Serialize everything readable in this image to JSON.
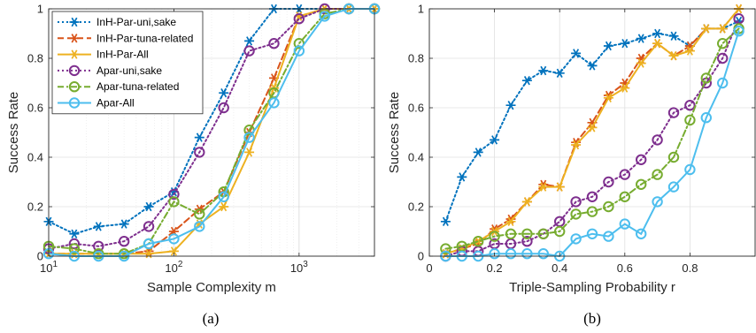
{
  "colors": {
    "blue": "#0072BD",
    "orange": "#D95319",
    "yellow": "#EDB120",
    "purple": "#7E2F8E",
    "green": "#77AC30",
    "cyan": "#4DBEEE"
  },
  "chart_data": [
    {
      "type": "line",
      "caption": "(a)",
      "xlabel": "Sample Complexity m",
      "ylabel": "Success Rate",
      "xscale": "log",
      "xlim": [
        10,
        4000
      ],
      "ylim": [
        0,
        1
      ],
      "xticks": [
        {
          "value": 10,
          "base": "10",
          "exp": "1"
        },
        {
          "value": 100,
          "base": "10",
          "exp": "2"
        },
        {
          "value": 1000,
          "base": "10",
          "exp": "3"
        }
      ],
      "yticks": [
        "0",
        "0.2",
        "0.4",
        "0.6",
        "0.8",
        "1"
      ],
      "grid": true,
      "legend_position": "top-left",
      "series": [
        {
          "name": "InH-Par-uni,sake",
          "color": "blue",
          "dash": "dotted",
          "marker": "asterisk",
          "x": [
            10,
            16,
            25,
            40,
            63,
            100,
            160,
            250,
            400,
            630,
            1000,
            1600,
            2500,
            4000
          ],
          "y": [
            0.14,
            0.09,
            0.12,
            0.13,
            0.2,
            0.26,
            0.48,
            0.66,
            0.87,
            1.0,
            1.0,
            1.0,
            1.0,
            1.0
          ]
        },
        {
          "name": "InH-Par-tuna-related",
          "color": "orange",
          "dash": "dashed",
          "marker": "asterisk",
          "x": [
            10,
            16,
            25,
            40,
            63,
            100,
            160,
            250,
            400,
            630,
            1000,
            1600,
            2500,
            4000
          ],
          "y": [
            0.01,
            0.01,
            0.01,
            0.01,
            0.02,
            0.1,
            0.19,
            0.26,
            0.5,
            0.72,
            0.97,
            1.0,
            1.0,
            1.0
          ]
        },
        {
          "name": "InH-Par-All",
          "color": "yellow",
          "dash": "solid",
          "marker": "asterisk",
          "x": [
            10,
            16,
            25,
            40,
            63,
            100,
            160,
            250,
            400,
            630,
            1000,
            1600,
            2500,
            4000
          ],
          "y": [
            0.01,
            0.01,
            0.01,
            0.01,
            0.01,
            0.02,
            0.13,
            0.2,
            0.42,
            0.68,
            0.97,
            1.0,
            1.0,
            1.0
          ]
        },
        {
          "name": "Apar-uni,sake",
          "color": "purple",
          "dash": "dotted",
          "marker": "circle",
          "x": [
            10,
            16,
            25,
            40,
            63,
            100,
            160,
            250,
            400,
            630,
            1000,
            1600,
            2500,
            4000
          ],
          "y": [
            0.03,
            0.05,
            0.04,
            0.06,
            0.12,
            0.25,
            0.42,
            0.6,
            0.83,
            0.86,
            0.96,
            1.0,
            1.0,
            1.0
          ]
        },
        {
          "name": "Apar-tuna-related",
          "color": "green",
          "dash": "dashdot",
          "marker": "circle",
          "x": [
            10,
            16,
            25,
            40,
            63,
            100,
            160,
            250,
            400,
            630,
            1000,
            1600,
            2500,
            4000
          ],
          "y": [
            0.04,
            0.03,
            0.01,
            0.01,
            0.05,
            0.22,
            0.17,
            0.26,
            0.51,
            0.66,
            0.86,
            0.98,
            1.0,
            1.0
          ]
        },
        {
          "name": "Apar-All",
          "color": "cyan",
          "dash": "solid",
          "marker": "circle",
          "x": [
            10,
            16,
            25,
            40,
            63,
            100,
            160,
            250,
            400,
            630,
            1000,
            1600,
            2500,
            4000
          ],
          "y": [
            0.01,
            0.0,
            0.0,
            0.0,
            0.05,
            0.07,
            0.12,
            0.24,
            0.48,
            0.62,
            0.83,
            0.97,
            1.0,
            1.0
          ]
        }
      ]
    },
    {
      "type": "line",
      "caption": "(b)",
      "xlabel": "Triple-Sampling Probability r",
      "ylabel": "Success Rate",
      "xscale": "linear",
      "xlim": [
        0,
        1
      ],
      "ylim": [
        0,
        1
      ],
      "xticks": [
        "0",
        "0.2",
        "0.4",
        "0.6",
        "0.8"
      ],
      "yticks": [
        "0",
        "0.2",
        "0.4",
        "0.6",
        "0.8",
        "1"
      ],
      "grid": true,
      "series": [
        {
          "name": "InH-Par-uni,sake",
          "color": "blue",
          "dash": "dotted",
          "marker": "asterisk",
          "x": [
            0.05,
            0.1,
            0.15,
            0.2,
            0.25,
            0.3,
            0.35,
            0.4,
            0.45,
            0.5,
            0.55,
            0.6,
            0.65,
            0.7,
            0.75,
            0.8,
            0.85,
            0.9,
            0.95
          ],
          "y": [
            0.14,
            0.32,
            0.42,
            0.47,
            0.61,
            0.71,
            0.75,
            0.74,
            0.82,
            0.77,
            0.85,
            0.86,
            0.88,
            0.9,
            0.89,
            0.85,
            0.92,
            0.92,
            0.95
          ]
        },
        {
          "name": "InH-Par-tuna-related",
          "color": "orange",
          "dash": "dashed",
          "marker": "asterisk",
          "x": [
            0.05,
            0.1,
            0.15,
            0.2,
            0.25,
            0.3,
            0.35,
            0.4,
            0.45,
            0.5,
            0.55,
            0.6,
            0.65,
            0.7,
            0.75,
            0.8,
            0.85,
            0.9,
            0.95
          ],
          "y": [
            0.01,
            0.03,
            0.05,
            0.11,
            0.15,
            0.22,
            0.29,
            0.28,
            0.46,
            0.54,
            0.65,
            0.7,
            0.8,
            0.86,
            0.81,
            0.85,
            0.92,
            0.92,
            1.0
          ]
        },
        {
          "name": "InH-Par-All",
          "color": "yellow",
          "dash": "solid",
          "marker": "asterisk",
          "x": [
            0.05,
            0.1,
            0.15,
            0.2,
            0.25,
            0.3,
            0.35,
            0.4,
            0.45,
            0.5,
            0.55,
            0.6,
            0.65,
            0.7,
            0.75,
            0.8,
            0.85,
            0.9,
            0.95
          ],
          "y": [
            0.01,
            0.03,
            0.06,
            0.1,
            0.14,
            0.22,
            0.28,
            0.28,
            0.45,
            0.52,
            0.64,
            0.68,
            0.78,
            0.86,
            0.81,
            0.83,
            0.92,
            0.92,
            1.0
          ]
        },
        {
          "name": "Apar-uni,sake",
          "color": "purple",
          "dash": "dotted",
          "marker": "circle",
          "x": [
            0.05,
            0.1,
            0.15,
            0.2,
            0.25,
            0.3,
            0.35,
            0.4,
            0.45,
            0.5,
            0.55,
            0.6,
            0.65,
            0.7,
            0.75,
            0.8,
            0.85,
            0.9,
            0.95
          ],
          "y": [
            0.0,
            0.02,
            0.02,
            0.05,
            0.05,
            0.06,
            0.09,
            0.14,
            0.22,
            0.24,
            0.3,
            0.33,
            0.39,
            0.47,
            0.58,
            0.61,
            0.7,
            0.8,
            0.96
          ]
        },
        {
          "name": "Apar-tuna-related",
          "color": "green",
          "dash": "dashdot",
          "marker": "circle",
          "x": [
            0.05,
            0.1,
            0.15,
            0.2,
            0.25,
            0.3,
            0.35,
            0.4,
            0.45,
            0.5,
            0.55,
            0.6,
            0.65,
            0.7,
            0.75,
            0.8,
            0.85,
            0.9,
            0.95
          ],
          "y": [
            0.03,
            0.04,
            0.06,
            0.08,
            0.09,
            0.09,
            0.09,
            0.1,
            0.17,
            0.18,
            0.2,
            0.24,
            0.29,
            0.33,
            0.4,
            0.55,
            0.72,
            0.86,
            0.92
          ]
        },
        {
          "name": "Apar-All",
          "color": "cyan",
          "dash": "solid",
          "marker": "circle",
          "x": [
            0.05,
            0.1,
            0.15,
            0.2,
            0.25,
            0.3,
            0.35,
            0.4,
            0.45,
            0.5,
            0.55,
            0.6,
            0.65,
            0.7,
            0.75,
            0.8,
            0.85,
            0.9,
            0.95
          ],
          "y": [
            0.0,
            0.0,
            0.0,
            0.01,
            0.01,
            0.01,
            0.01,
            0.0,
            0.07,
            0.09,
            0.08,
            0.13,
            0.09,
            0.22,
            0.28,
            0.35,
            0.56,
            0.7,
            0.91
          ]
        }
      ]
    }
  ]
}
